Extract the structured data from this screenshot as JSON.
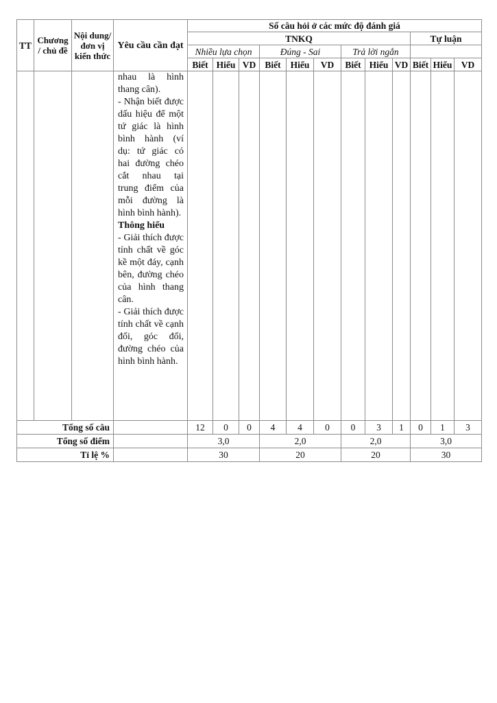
{
  "header": {
    "tt": "TT",
    "chuong": "Chương / chủ đề",
    "noi_dung": "Nội dung/ đơn vị kiến thức",
    "yeu_cau": "Yêu cầu cần đạt",
    "so_cau_hoi": "Số câu hỏi ở các mức độ đánh giá",
    "tnkq": "TNKQ",
    "tu_luan": "Tự luận",
    "nhieu_lua_chon": "Nhiều lựa chọn",
    "dung_sai": "Đúng - Sai",
    "tra_loi_ngan": "Trả lời ngắn",
    "levels": [
      "Biết",
      "Hiểu",
      "VD",
      "Biết",
      "Hiểu",
      "VD",
      "Biết",
      "Hiểu",
      "VD",
      "Biết",
      "Hiểu",
      "VD"
    ]
  },
  "body": {
    "requirement_lines": [
      "nhau là hình thang cân).",
      "- Nhận biết được dấu hiệu để một tứ giác là hình bình hành (ví dụ: tứ giác có hai đường chéo cắt nhau tại trung điểm của mỗi đường là hình bình hành).",
      "Thông hiểu",
      "- Giải thích được tính chất về góc kề một đáy, cạnh bên, đường chéo của hình thang cân.",
      "- Giải thích được tính chất về cạnh đối, góc đối, đường chéo của hình bình hành."
    ]
  },
  "totals": {
    "tong_so_cau_label": "Tổng số câu",
    "tong_so_cau": [
      "12",
      "0",
      "0",
      "4",
      "4",
      "0",
      "0",
      "3",
      "1",
      "0",
      "1",
      "3"
    ],
    "tong_so_diem_label": "Tổng số điểm",
    "tong_so_diem": [
      "3,0",
      "2,0",
      "2,0",
      "3,0"
    ],
    "ti_le_label": "Tỉ lệ %",
    "ti_le": [
      "30",
      "20",
      "20",
      "30"
    ]
  }
}
